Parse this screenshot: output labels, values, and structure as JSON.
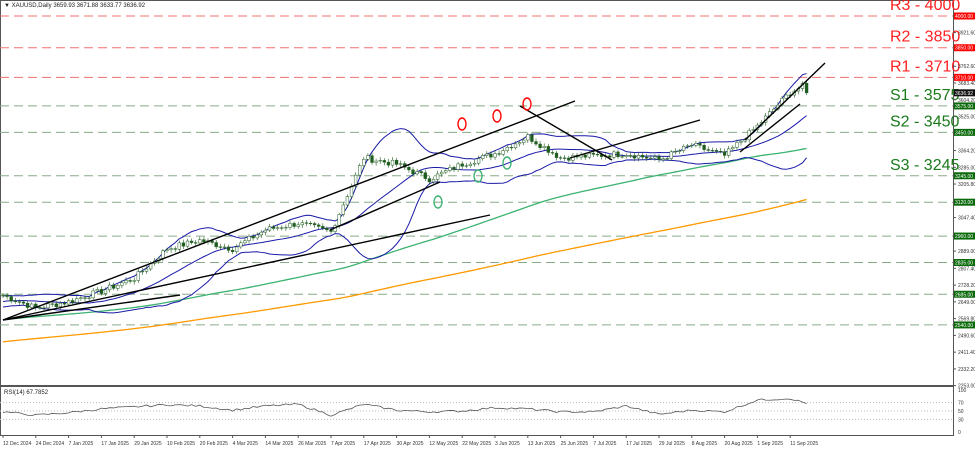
{
  "header": {
    "symbol": "XAUUSD,Daily",
    "ohlc": "3659.93 3671.88 3633.77 3636.92"
  },
  "colors": {
    "resistance": "#ff2020",
    "support": "#1a7a1a",
    "bollinger": "#1a1aa8",
    "ma_green": "#3cb371",
    "ma_orange": "#ff9900",
    "trend": "#000000",
    "candle": "#1f5c1f"
  },
  "chart_data": {
    "type": "candlestick",
    "title": "XAUUSD,Daily",
    "price_ticks": [
      3921.6,
      3762.6,
      3683.4,
      3604.2,
      3525,
      3364.2,
      3285,
      3205.8,
      3047.4,
      2889,
      2807.4,
      2728.2,
      2649,
      2569.8,
      2490.6,
      2411.4,
      2332.2,
      2253
    ],
    "last_price": "3636.92",
    "levels": [
      {
        "label": "R3 - 4000",
        "value": 4000,
        "tag": "4000.00",
        "type": "resistance"
      },
      {
        "label": "R2 - 3850",
        "value": 3850,
        "tag": "3850.00",
        "type": "resistance"
      },
      {
        "label": "R1 - 3710",
        "value": 3710,
        "tag": "3710.00",
        "type": "resistance"
      },
      {
        "label": "S1 - 3575",
        "value": 3575,
        "tag": "3575.00",
        "type": "support"
      },
      {
        "label": "S2 - 3450",
        "value": 3450,
        "tag": "3450.00",
        "type": "support"
      },
      {
        "label": "S3 - 3245",
        "value": 3245,
        "tag": "3245.00",
        "type": "support"
      },
      {
        "label": "",
        "value": 3120,
        "tag": "3120.00",
        "type": "support"
      },
      {
        "label": "",
        "value": 2960,
        "tag": "2960.00",
        "type": "support"
      },
      {
        "label": "",
        "value": 2835,
        "tag": "2835.00",
        "type": "support"
      },
      {
        "label": "",
        "value": 2685,
        "tag": "2685.00",
        "type": "support"
      },
      {
        "label": "",
        "value": 2540,
        "tag": "2540.00",
        "type": "support"
      }
    ],
    "x_labels": [
      "12 Dec 2024",
      "24 Dec 2024",
      "7 Jan 2025",
      "17 Jan 2025",
      "29 Jan 2025",
      "10 Feb 2025",
      "20 Feb 2025",
      "4 Mar 2025",
      "14 Mar 2025",
      "26 Mar 2025",
      "7 Apr 2025",
      "17 Apr 2025",
      "30 Apr 2025",
      "12 May 2025",
      "22 May 2025",
      "3 Jun 2025",
      "13 Jun 2025",
      "25 Jun 2025",
      "7 Jul 2025",
      "17 Jul 2025",
      "29 Jul 2025",
      "8 Aug 2025",
      "20 Aug 2025",
      "1 Sep 2025",
      "11 Sep 2025"
    ],
    "approx_close_at_labels": [
      2680,
      2620,
      2650,
      2700,
      2760,
      2900,
      2940,
      2900,
      2990,
      3020,
      2980,
      3330,
      3300,
      3230,
      3300,
      3350,
      3430,
      3330,
      3340,
      3350,
      3320,
      3390,
      3340,
      3480,
      3640
    ],
    "last_close": 3636.92,
    "indicators": [
      "Bollinger Bands(20)",
      "MA 100",
      "MA 200"
    ],
    "rsi": {
      "label": "RSI(14) 67.7852",
      "ticks": [
        100,
        70,
        50,
        30,
        0
      ],
      "approx_at_labels": [
        48,
        40,
        46,
        55,
        60,
        65,
        62,
        52,
        62,
        66,
        40,
        66,
        52,
        48,
        50,
        58,
        55,
        48,
        48,
        62,
        42,
        52,
        48,
        76,
        80
      ],
      "last": 67.79
    }
  }
}
